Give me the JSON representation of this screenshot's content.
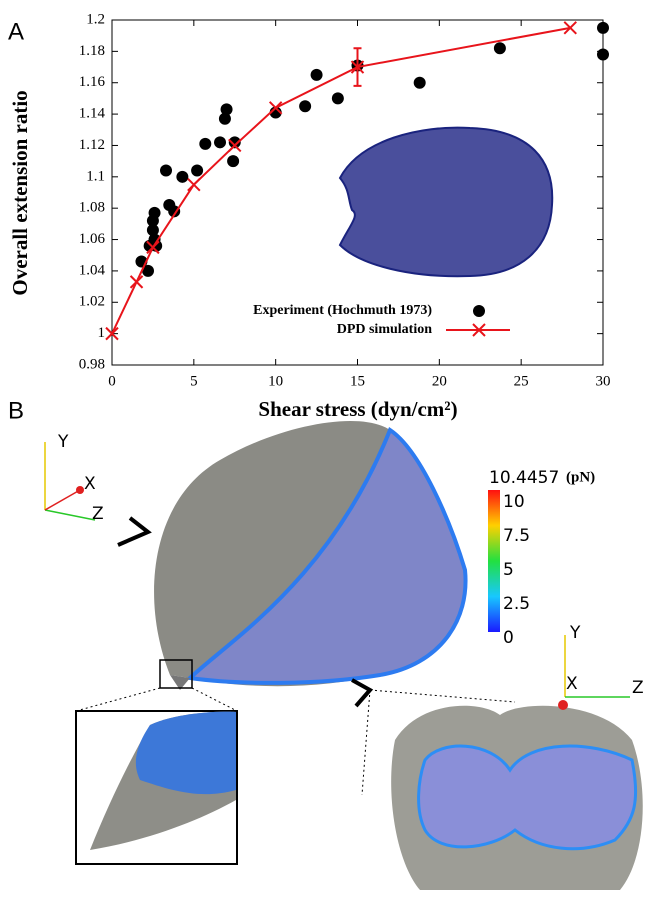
{
  "chart_data": {
    "type": "line",
    "panel_label": "A",
    "xlabel": "Shear stress (dyn/cm²)",
    "ylabel": "Overall extension ratio",
    "xlim": [
      0,
      30
    ],
    "ylim": [
      0.98,
      1.2
    ],
    "xticks": [
      0,
      5,
      10,
      15,
      20,
      25,
      30
    ],
    "yticks": [
      0.98,
      1,
      1.02,
      1.04,
      1.06,
      1.08,
      1.1,
      1.12,
      1.14,
      1.16,
      1.18,
      1.2
    ],
    "series": [
      {
        "name": "Experiment (Hochmuth 1973)",
        "color": "#000000",
        "marker": "circle",
        "line": false,
        "x": [
          1.8,
          2.2,
          2.3,
          2.5,
          2.5,
          2.6,
          2.6,
          2.7,
          3.3,
          3.5,
          3.8,
          4.3,
          5.2,
          5.7,
          6.6,
          6.9,
          7.0,
          7.5,
          7.4,
          10.0,
          11.8,
          12.5,
          13.8,
          15.0,
          18.8,
          23.7,
          30,
          30
        ],
        "values": [
          1.046,
          1.04,
          1.056,
          1.066,
          1.072,
          1.077,
          1.06,
          1.056,
          1.104,
          1.082,
          1.078,
          1.1,
          1.104,
          1.121,
          1.122,
          1.137,
          1.143,
          1.122,
          1.11,
          1.141,
          1.145,
          1.165,
          1.15,
          1.171,
          1.16,
          1.182,
          1.195,
          1.178
        ]
      },
      {
        "name": "DPD simulation",
        "color": "#e8141b",
        "marker": "x",
        "line": true,
        "x": [
          0,
          1.5,
          2.5,
          5,
          7.5,
          10,
          15,
          28
        ],
        "values": [
          1.0,
          1.033,
          1.055,
          1.095,
          1.12,
          1.144,
          1.17,
          1.195
        ],
        "errors": [
          null,
          null,
          null,
          null,
          null,
          null,
          0.012,
          null
        ]
      }
    ]
  },
  "panel_b": {
    "panel_label": "B",
    "triad_left": {
      "y": "Y",
      "x": "X",
      "z": "Z"
    },
    "triad_right": {
      "y": "Y",
      "x": "X",
      "z": "Z"
    },
    "colorbar": {
      "max": 10.4457,
      "min": 0,
      "unit": "(pN)",
      "ticks": [
        0,
        2.5,
        5,
        7.5,
        10
      ]
    }
  }
}
